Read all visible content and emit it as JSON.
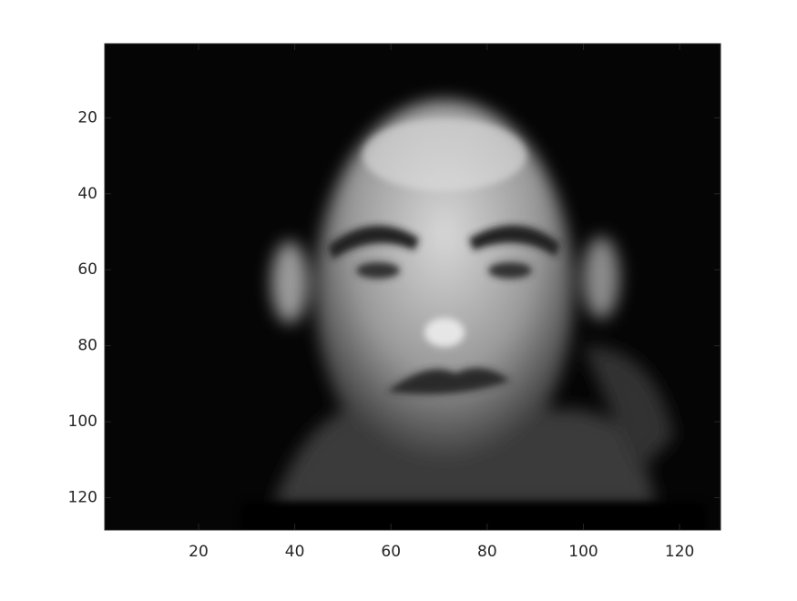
{
  "chart_data": {
    "type": "image",
    "xlim": [
      0.5,
      128.5
    ],
    "ylim": [
      0.5,
      128.5
    ],
    "y_reversed": true,
    "xticks": [
      20,
      40,
      60,
      80,
      100,
      120
    ],
    "yticks": [
      20,
      40,
      60,
      80,
      100,
      120
    ]
  }
}
